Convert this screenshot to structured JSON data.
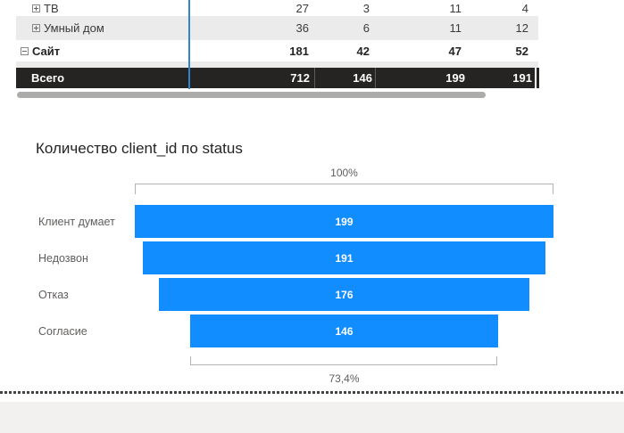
{
  "table": {
    "rows": [
      {
        "label": "ТВ",
        "state": "collapsed",
        "level": 2,
        "values": [
          "27",
          "3",
          "11",
          "4"
        ]
      },
      {
        "label": "Умный дом",
        "state": "collapsed",
        "level": 2,
        "values": [
          "36",
          "6",
          "11",
          "12"
        ]
      },
      {
        "label": "Сайт",
        "state": "expanded",
        "level": 1,
        "values": [
          "181",
          "42",
          "47",
          "52"
        ]
      }
    ],
    "total": {
      "label": "Всего",
      "values": [
        "712",
        "146",
        "199",
        "191"
      ]
    }
  },
  "funnel": {
    "title": "Количество client_id по status",
    "top_label": "100%",
    "bottom_label": "73,4%",
    "bar_color": "#118DFF",
    "max_value": 199,
    "bars": [
      {
        "label": "Клиент думает",
        "value": 199
      },
      {
        "label": "Недозвон",
        "value": 191
      },
      {
        "label": "Отказ",
        "value": 176
      },
      {
        "label": "Согласие",
        "value": 146
      }
    ]
  },
  "chart_data": [
    {
      "type": "table",
      "title": "",
      "rows": [
        [
          "ТВ",
          27,
          3,
          11,
          4
        ],
        [
          "Умный дом",
          36,
          6,
          11,
          12
        ],
        [
          "Сайт",
          181,
          42,
          47,
          52
        ],
        [
          "Всего",
          712,
          146,
          199,
          191
        ]
      ],
      "notes": "matrix fragment, column headers cropped out of view; Всего is grand-total row"
    },
    {
      "type": "bar",
      "subtype": "funnel",
      "orientation": "horizontal-centered",
      "title": "Количество client_id по status",
      "categories": [
        "Клиент думает",
        "Недозвон",
        "Отказ",
        "Согласие"
      ],
      "values": [
        199,
        191,
        176,
        146
      ],
      "data_labels": [
        "199",
        "191",
        "176",
        "146"
      ],
      "annotations": {
        "top_bracket": "100%",
        "bottom_bracket": "73,4%"
      },
      "bar_color": "#118DFF",
      "legend": "off",
      "grid": "off"
    }
  ],
  "colors": {
    "funnel_bar": "#118DFF",
    "total_row_bg": "#252423",
    "alt_row_bg": "#ebebeb",
    "resize_guide": "#2b86cd",
    "muted_text": "#605e5c",
    "below_canvas_bg": "#f2f1ef"
  }
}
